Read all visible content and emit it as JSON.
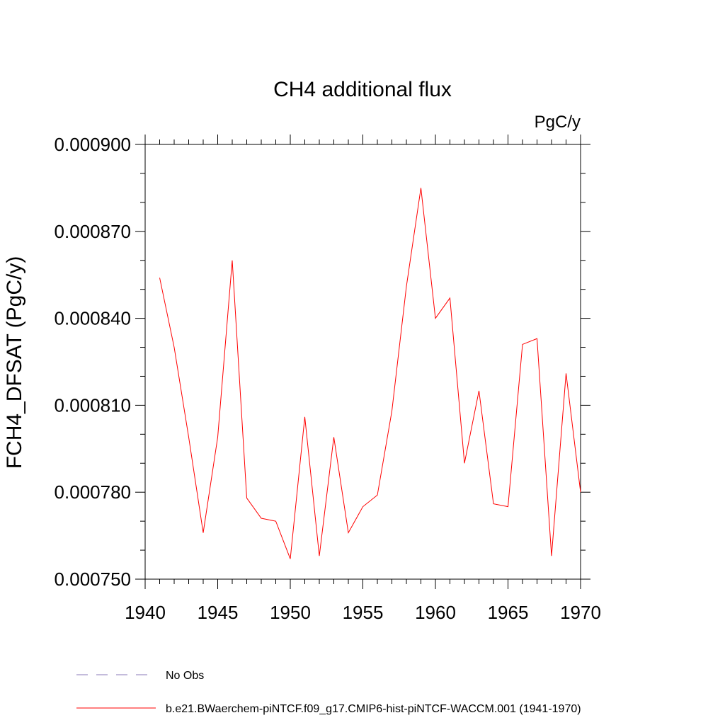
{
  "chart_data": {
    "type": "line",
    "title": "CH4 additional flux",
    "units": "PgC/y",
    "ylabel": "FCH4_DFSAT  (PgC/y)",
    "xlabel": "",
    "xlim": [
      1940,
      1970
    ],
    "ylim": [
      0.00075,
      0.0009
    ],
    "xticks": [
      1940,
      1945,
      1950,
      1955,
      1960,
      1965,
      1970
    ],
    "yticks": [
      0.00075,
      0.00078,
      0.00081,
      0.00084,
      0.00087,
      0.0009
    ],
    "ytick_labels": [
      "0.000750",
      "0.000780",
      "0.000810",
      "0.000840",
      "0.000870",
      "0.000900"
    ],
    "grid": false,
    "legend_position": "bottom-left",
    "series": [
      {
        "name": "b.e21.BWaerchem-piNTCF.f09_g17.CMIP6-hist-piNTCF-WACCM.001 (1941-1970)",
        "color": "#ff0000",
        "dash": "solid",
        "x": [
          1941,
          1942,
          1943,
          1944,
          1945,
          1946,
          1947,
          1948,
          1949,
          1950,
          1951,
          1952,
          1953,
          1954,
          1955,
          1956,
          1957,
          1958,
          1959,
          1960,
          1961,
          1962,
          1963,
          1964,
          1965,
          1966,
          1967,
          1968,
          1969,
          1970
        ],
        "y": [
          0.000854,
          0.00083,
          0.000799,
          0.000766,
          0.000799,
          0.00086,
          0.000778,
          0.000771,
          0.00077,
          0.000757,
          0.000806,
          0.000758,
          0.000799,
          0.000766,
          0.000775,
          0.000779,
          0.000808,
          0.000851,
          0.000885,
          0.00084,
          0.000847,
          0.00079,
          0.000815,
          0.000776,
          0.000775,
          0.000831,
          0.000833,
          0.000758,
          0.000821,
          0.00078
        ]
      },
      {
        "name": "No Obs",
        "color": "#8a7ab8",
        "dash": "dashed",
        "x": [],
        "y": []
      }
    ]
  }
}
